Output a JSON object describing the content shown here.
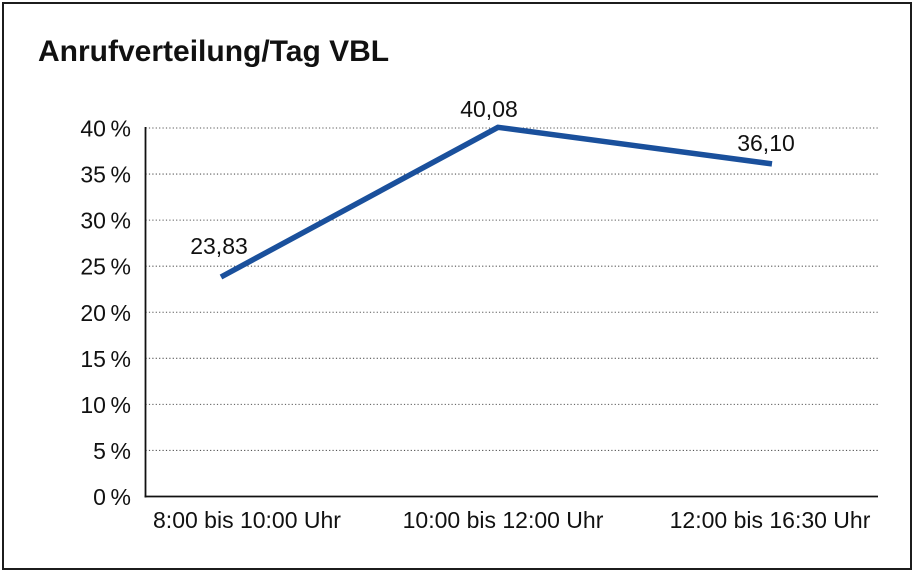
{
  "window": {
    "background_color": "#ffffff",
    "border_color": "#1c1c1c"
  },
  "chart_data": {
    "type": "line",
    "title": "Anrufverteilung/Tag VBL",
    "categories": [
      "8:00 bis 10:00 Uhr",
      "10:00 bis 12:00 Uhr",
      "12:00 bis 16:30 Uhr"
    ],
    "values": [
      23.83,
      40.08,
      36.1
    ],
    "value_labels": [
      "23,83",
      "40,08",
      "36,10"
    ],
    "xlabel": "",
    "ylabel": "",
    "ylim": [
      0,
      40
    ],
    "ytick_step": 5,
    "ytick_values": [
      0,
      5,
      10,
      15,
      20,
      25,
      30,
      35,
      40
    ],
    "ytick_labels": [
      "0 %",
      "5 %",
      "10 %",
      "15 %",
      "20 %",
      "25 %",
      "30 %",
      "35 %",
      "40 %"
    ],
    "grid": "horizontal-dotted",
    "legend": "none",
    "line_color": "#1a509c",
    "axis_color": "#111111",
    "grid_color": "#555555",
    "text_color": "#111111"
  }
}
